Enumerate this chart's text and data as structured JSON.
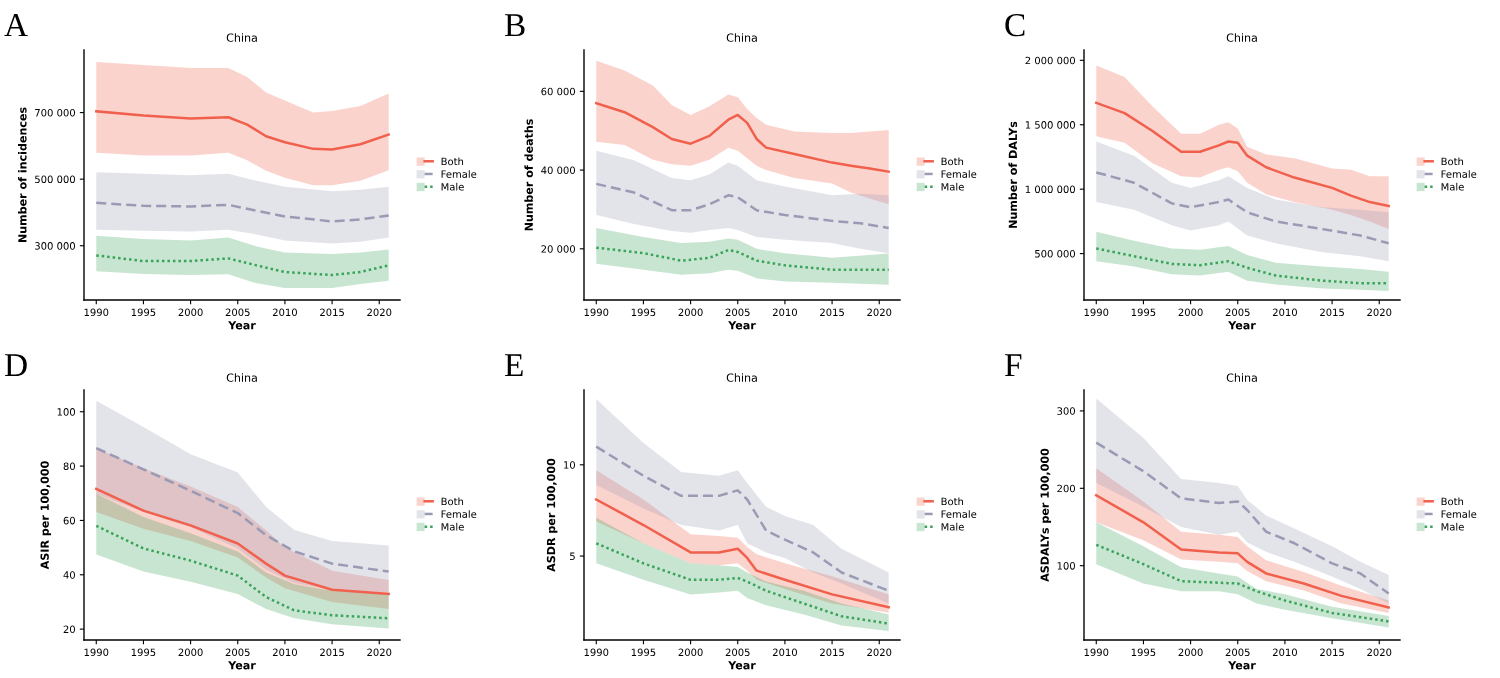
{
  "chart_data": [
    {
      "type": "line",
      "title": "China",
      "xlabel": "Year",
      "ylabel": "Number of incidences",
      "annotations": [
        "A"
      ],
      "legend": "right",
      "grid": false,
      "xlim": [
        1988.7,
        2022.2
      ],
      "xticks": [
        1990,
        1995,
        2000,
        2005,
        2010,
        2015,
        2020
      ],
      "ylim": [
        137000,
        888000
      ],
      "yticks": [
        {
          "value": 300000,
          "label": "300 000"
        },
        {
          "value": 500000,
          "label": "500 000"
        },
        {
          "value": 700000,
          "label": "700 000"
        }
      ],
      "series": [
        {
          "name": "Both",
          "color": "#f0604d",
          "line_style": "solid",
          "x": [
            1990,
            1995,
            2000,
            2004,
            2006,
            2008,
            2010,
            2013,
            2015,
            2018,
            2021
          ],
          "values": [
            704000,
            691000,
            682000,
            686000,
            664000,
            629000,
            611000,
            591000,
            589000,
            605000,
            634000
          ],
          "upper": [
            852000,
            843000,
            834000,
            834000,
            807000,
            760000,
            736000,
            700000,
            705000,
            720000,
            757000
          ],
          "lower": [
            579000,
            571000,
            571000,
            579000,
            557000,
            525000,
            504000,
            482000,
            482000,
            495000,
            527000
          ]
        },
        {
          "name": "Female",
          "color": "#9a9ab4",
          "line_style": "dashed",
          "x": [
            1990,
            1995,
            2000,
            2004,
            2007,
            2010,
            2015,
            2018,
            2021
          ],
          "values": [
            429000,
            420000,
            418000,
            423000,
            405000,
            388000,
            373000,
            379000,
            391000
          ],
          "upper": [
            521000,
            516000,
            512000,
            516000,
            495000,
            477000,
            464000,
            468000,
            477000
          ],
          "lower": [
            348000,
            345000,
            343000,
            348000,
            334000,
            316000,
            307000,
            312000,
            325000
          ]
        },
        {
          "name": "Male",
          "color": "#3aa35a",
          "line_style": "dotted",
          "x": [
            1990,
            1995,
            2000,
            2004,
            2007,
            2010,
            2015,
            2018,
            2021
          ],
          "values": [
            271000,
            254000,
            254000,
            262000,
            241000,
            221000,
            212000,
            221000,
            241000
          ],
          "upper": [
            330000,
            320000,
            316000,
            325000,
            298000,
            280000,
            275000,
            280000,
            289000
          ],
          "lower": [
            223000,
            215000,
            212000,
            214000,
            187000,
            173000,
            173000,
            185000,
            195000
          ]
        }
      ]
    },
    {
      "type": "line",
      "title": "China",
      "xlabel": "Year",
      "ylabel": "Number of deaths",
      "annotations": [
        "B"
      ],
      "legend": "right",
      "grid": false,
      "xlim": [
        1988.7,
        2022.2
      ],
      "xticks": [
        1990,
        1995,
        2000,
        2005,
        2010,
        2015,
        2020
      ],
      "ylim": [
        7000,
        70500
      ],
      "yticks": [
        {
          "value": 20000,
          "label": "20 000"
        },
        {
          "value": 40000,
          "label": "40 000"
        },
        {
          "value": 60000,
          "label": "60 000"
        }
      ],
      "series": [
        {
          "name": "Both",
          "color": "#f0604d",
          "line_style": "solid",
          "x": [
            1990,
            1993,
            1996,
            1998,
            2000,
            2002,
            2004,
            2005,
            2006,
            2007,
            2008,
            2011,
            2015,
            2017,
            2019,
            2021
          ],
          "values": [
            57000,
            54700,
            50900,
            47900,
            46700,
            48700,
            52800,
            54000,
            52000,
            47900,
            45700,
            44100,
            41900,
            41100,
            40400,
            39600
          ],
          "upper": [
            67800,
            65300,
            61500,
            56500,
            54000,
            56200,
            59200,
            58500,
            55500,
            53200,
            51500,
            49800,
            49400,
            49400,
            49800,
            50200
          ],
          "lower": [
            47200,
            46400,
            42600,
            41500,
            41100,
            42600,
            45700,
            44900,
            43000,
            41100,
            40000,
            38000,
            36600,
            34300,
            32800,
            31300
          ]
        },
        {
          "name": "Female",
          "color": "#9a9ab4",
          "line_style": "dashed",
          "x": [
            1990,
            1994,
            1998,
            2000,
            2002,
            2004,
            2005,
            2007,
            2010,
            2015,
            2018,
            2021
          ],
          "values": [
            36500,
            34300,
            29800,
            29800,
            31300,
            33600,
            33100,
            29800,
            28600,
            27100,
            26500,
            25300
          ],
          "upper": [
            44900,
            42500,
            38000,
            37400,
            38900,
            41900,
            41100,
            37400,
            35800,
            33600,
            34000,
            33600
          ],
          "lower": [
            28600,
            26300,
            24500,
            24100,
            24800,
            25300,
            24800,
            23000,
            22300,
            21500,
            20000,
            18900
          ]
        },
        {
          "name": "Male",
          "color": "#3aa35a",
          "line_style": "dotted",
          "x": [
            1990,
            1995,
            1999,
            2002,
            2004,
            2005,
            2007,
            2010,
            2015,
            2021
          ],
          "values": [
            20300,
            18900,
            17000,
            17700,
            19700,
            19200,
            17000,
            15800,
            14700,
            14700
          ],
          "upper": [
            25300,
            23000,
            21500,
            21800,
            22600,
            22300,
            20000,
            18900,
            17700,
            18800
          ],
          "lower": [
            16200,
            14700,
            13400,
            13800,
            14700,
            14400,
            12500,
            11700,
            11400,
            10900
          ]
        }
      ]
    },
    {
      "type": "line",
      "title": "China",
      "xlabel": "Year",
      "ylabel": "Number of DALYs",
      "annotations": [
        "C"
      ],
      "legend": "right",
      "grid": false,
      "xlim": [
        1988.7,
        2022.2
      ],
      "xticks": [
        1990,
        1995,
        2000,
        2005,
        2010,
        2015,
        2020
      ],
      "ylim": [
        140000,
        2080000
      ],
      "yticks": [
        {
          "value": 500000,
          "label": "500 000"
        },
        {
          "value": 1000000,
          "label": "1 000 000"
        },
        {
          "value": 1500000,
          "label": "1 500 000"
        },
        {
          "value": 2000000,
          "label": "2 000 000"
        }
      ],
      "series": [
        {
          "name": "Both",
          "color": "#f0604d",
          "line_style": "solid",
          "x": [
            1990,
            1993,
            1996,
            1999,
            2001,
            2003,
            2004,
            2005,
            2006,
            2008,
            2011,
            2015,
            2017,
            2019,
            2021
          ],
          "values": [
            1670000,
            1590000,
            1450000,
            1290000,
            1290000,
            1340000,
            1370000,
            1360000,
            1260000,
            1170000,
            1090000,
            1010000,
            950000,
            900000,
            870000
          ],
          "upper": [
            1960000,
            1870000,
            1640000,
            1430000,
            1430000,
            1500000,
            1520000,
            1470000,
            1330000,
            1270000,
            1240000,
            1160000,
            1150000,
            1100000,
            1100000
          ],
          "lower": [
            1410000,
            1360000,
            1200000,
            1100000,
            1090000,
            1150000,
            1170000,
            1140000,
            1050000,
            960000,
            900000,
            840000,
            800000,
            750000,
            690000
          ]
        },
        {
          "name": "Female",
          "color": "#9a9ab4",
          "line_style": "dashed",
          "x": [
            1990,
            1994,
            1998,
            2000,
            2003,
            2004,
            2006,
            2009,
            2014,
            2018,
            2021
          ],
          "values": [
            1130000,
            1050000,
            890000,
            860000,
            900000,
            920000,
            820000,
            750000,
            690000,
            640000,
            580000
          ],
          "upper": [
            1370000,
            1260000,
            1050000,
            1010000,
            1070000,
            1100000,
            1010000,
            920000,
            860000,
            840000,
            820000
          ],
          "lower": [
            900000,
            840000,
            720000,
            680000,
            720000,
            750000,
            640000,
            580000,
            510000,
            480000,
            440000
          ]
        },
        {
          "name": "Male",
          "color": "#3aa35a",
          "line_style": "dotted",
          "x": [
            1990,
            1994,
            1998,
            2001,
            2004,
            2006,
            2009,
            2014,
            2018,
            2021
          ],
          "values": [
            540000,
            480000,
            420000,
            410000,
            440000,
            390000,
            330000,
            290000,
            270000,
            270000
          ],
          "upper": [
            670000,
            600000,
            540000,
            530000,
            560000,
            490000,
            430000,
            400000,
            380000,
            360000
          ],
          "lower": [
            440000,
            400000,
            340000,
            330000,
            360000,
            290000,
            260000,
            230000,
            220000,
            210000
          ]
        }
      ]
    },
    {
      "type": "line",
      "title": "China",
      "xlabel": "Year",
      "ylabel": "ASIR per 100,000",
      "annotations": [
        "D"
      ],
      "legend": "right",
      "grid": false,
      "xlim": [
        1988.7,
        2022.2
      ],
      "xticks": [
        1990,
        1995,
        2000,
        2005,
        2010,
        2015,
        2020
      ],
      "ylim": [
        16,
        108
      ],
      "yticks": [
        20,
        40,
        60,
        80,
        100
      ],
      "series": [
        {
          "name": "Both",
          "color": "#f0604d",
          "line_style": "solid",
          "x": [
            1990,
            1995,
            2000,
            2005,
            2008,
            2010,
            2015,
            2021
          ],
          "values": [
            71.6,
            63.6,
            58.2,
            51.5,
            44.1,
            39.7,
            34.5,
            33.0
          ],
          "upper": [
            86.6,
            79.2,
            72.5,
            64.9,
            56.4,
            50.0,
            41.5,
            38.1
          ],
          "lower": [
            63.1,
            56.9,
            52.4,
            46.4,
            39.0,
            35.0,
            30.0,
            27.4
          ]
        },
        {
          "name": "Female",
          "color": "#9a9ab4",
          "line_style": "dashed",
          "x": [
            1990,
            1995,
            2000,
            2005,
            2008,
            2011,
            2015,
            2021
          ],
          "values": [
            86.6,
            78.8,
            70.9,
            62.7,
            54.6,
            48.6,
            44.1,
            41.2
          ],
          "upper": [
            104.0,
            94.4,
            84.4,
            77.6,
            65.0,
            56.5,
            52.4,
            50.8
          ],
          "lower": [
            69.8,
            63.1,
            57.5,
            49.7,
            41.9,
            37.0,
            34.5,
            33.6
          ]
        },
        {
          "name": "Male",
          "color": "#3aa35a",
          "line_style": "dotted",
          "x": [
            1990,
            1995,
            2000,
            2005,
            2008,
            2011,
            2015,
            2021
          ],
          "values": [
            58.0,
            49.7,
            45.2,
            39.7,
            31.8,
            26.9,
            25.1,
            24.0
          ],
          "upper": [
            69.8,
            61.3,
            55.3,
            48.6,
            40.8,
            36.5,
            34.1,
            33.0
          ],
          "lower": [
            47.5,
            41.2,
            37.4,
            32.9,
            27.4,
            24.0,
            21.8,
            20.2
          ]
        }
      ]
    },
    {
      "type": "line",
      "title": "China",
      "xlabel": "Year",
      "ylabel": "ASDR per 100,000",
      "annotations": [
        "E"
      ],
      "legend": "right",
      "grid": false,
      "xlim": [
        1988.7,
        2022.2
      ],
      "xticks": [
        1990,
        1995,
        2000,
        2005,
        2010,
        2015,
        2020
      ],
      "ylim": [
        0.4,
        14.1
      ],
      "yticks": [
        5,
        10
      ],
      "series": [
        {
          "name": "Both",
          "color": "#f0604d",
          "line_style": "solid",
          "x": [
            1990,
            1995,
            2000,
            2003,
            2005,
            2006,
            2007,
            2010,
            2015,
            2021
          ],
          "values": [
            8.1,
            6.7,
            5.2,
            5.2,
            5.4,
            4.9,
            4.2,
            3.7,
            2.9,
            2.2
          ],
          "upper": [
            9.7,
            8.1,
            6.2,
            6.1,
            6.0,
            5.5,
            5.1,
            4.6,
            3.9,
            2.9
          ],
          "lower": [
            6.9,
            5.7,
            4.6,
            4.5,
            4.6,
            4.2,
            3.7,
            3.2,
            2.4,
            1.9
          ]
        },
        {
          "name": "Female",
          "color": "#9a9ab4",
          "line_style": "dashed",
          "x": [
            1990,
            1995,
            1999,
            2003,
            2005,
            2006,
            2008,
            2010,
            2013,
            2016,
            2021
          ],
          "values": [
            11.0,
            9.4,
            8.3,
            8.3,
            8.6,
            8.1,
            6.4,
            5.9,
            5.2,
            4.1,
            3.1
          ],
          "upper": [
            13.6,
            11.2,
            9.6,
            9.4,
            9.7,
            9.0,
            7.7,
            7.2,
            6.7,
            5.4,
            4.1
          ],
          "lower": [
            8.9,
            7.6,
            6.7,
            6.4,
            6.7,
            5.7,
            5.2,
            4.9,
            4.1,
            3.5,
            2.4
          ]
        },
        {
          "name": "Male",
          "color": "#3aa35a",
          "line_style": "dotted",
          "x": [
            1990,
            1995,
            2000,
            2003,
            2005,
            2006,
            2008,
            2012,
            2016,
            2021
          ],
          "values": [
            5.7,
            4.6,
            3.7,
            3.7,
            3.8,
            3.6,
            3.1,
            2.4,
            1.7,
            1.3
          ],
          "upper": [
            7.1,
            5.7,
            4.6,
            4.5,
            4.4,
            4.1,
            3.6,
            3.1,
            2.4,
            1.8
          ],
          "lower": [
            4.6,
            3.7,
            2.9,
            3.0,
            3.1,
            2.7,
            2.3,
            1.8,
            1.2,
            0.9
          ]
        }
      ]
    },
    {
      "type": "line",
      "title": "China",
      "xlabel": "Year",
      "ylabel": "ASDALYs per 100,000",
      "annotations": [
        "F"
      ],
      "legend": "right",
      "grid": false,
      "xlim": [
        1988.7,
        2022.2
      ],
      "xticks": [
        1990,
        1995,
        2000,
        2005,
        2010,
        2015,
        2020
      ],
      "ylim": [
        4,
        327
      ],
      "yticks": [
        100,
        200,
        300
      ],
      "series": [
        {
          "name": "Both",
          "color": "#f0604d",
          "line_style": "solid",
          "x": [
            1990,
            1995,
            1999,
            2003,
            2005,
            2006,
            2008,
            2012,
            2016,
            2021
          ],
          "values": [
            191,
            156,
            121,
            117,
            116,
            105,
            90,
            77,
            61,
            46
          ],
          "upper": [
            226,
            183,
            144,
            140,
            137,
            125,
            107,
            92,
            74,
            55
          ],
          "lower": [
            156,
            133,
            108,
            105,
            103,
            93,
            80,
            68,
            51,
            39
          ]
        },
        {
          "name": "Female",
          "color": "#9a9ab4",
          "line_style": "dashed",
          "x": [
            1990,
            1995,
            1999,
            2003,
            2005,
            2006,
            2008,
            2011,
            2015,
            2018,
            2021
          ],
          "values": [
            259,
            222,
            187,
            181,
            183,
            172,
            144,
            129,
            103,
            90,
            64
          ],
          "upper": [
            316,
            265,
            212,
            207,
            203,
            185,
            165,
            148,
            125,
            105,
            88
          ],
          "lower": [
            207,
            176,
            150,
            140,
            144,
            130,
            118,
            105,
            86,
            70,
            51
          ]
        },
        {
          "name": "Male",
          "color": "#3aa35a",
          "line_style": "dotted",
          "x": [
            1990,
            1995,
            1999,
            2003,
            2005,
            2007,
            2010,
            2015,
            2021
          ],
          "values": [
            127,
            102,
            80,
            78,
            77,
            67,
            55,
            39,
            28
          ],
          "upper": [
            156,
            125,
            98,
            90,
            86,
            70,
            63,
            47,
            35
          ],
          "lower": [
            102,
            77,
            67,
            67,
            63,
            51,
            43,
            32,
            20
          ]
        }
      ]
    }
  ]
}
